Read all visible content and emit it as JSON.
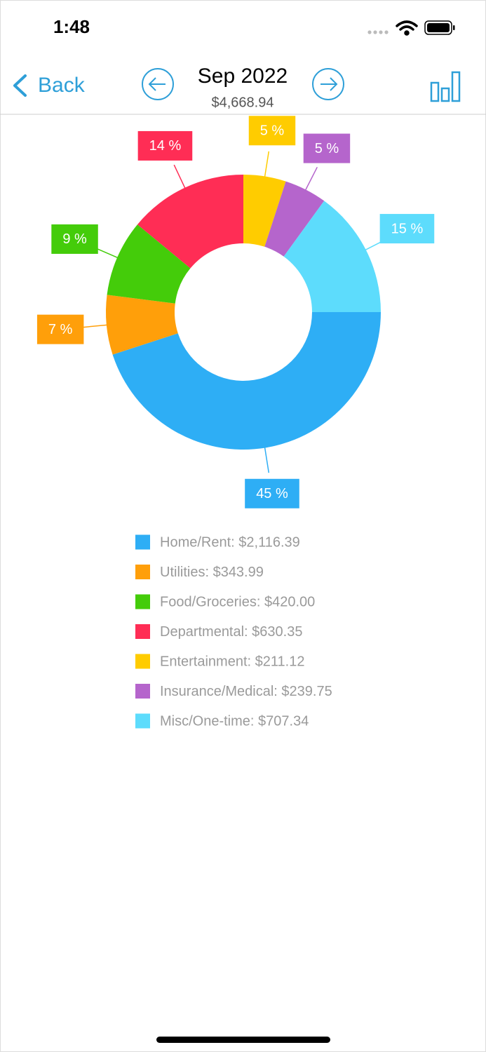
{
  "status_bar": {
    "time": "1:48"
  },
  "nav": {
    "back": "Back",
    "title": "Sep 2022",
    "subtitle": "$4,668.94"
  },
  "chart_data": {
    "type": "donut",
    "categories": [
      "Home/Rent: $2,116.39",
      "Utilities: $343.99",
      "Food/Groceries: $420.00",
      "Departmental: $630.35",
      "Entertainment: $211.12",
      "Insurance/Medical: $239.75",
      "Misc/One-time: $707.34"
    ],
    "values": [
      45,
      7,
      9,
      14,
      5,
      5,
      15
    ],
    "value_labels": [
      "45 %",
      "7 %",
      "9 %",
      "14 %",
      "5 %",
      "5 %",
      "15 %"
    ],
    "colors": [
      "#2eaef5",
      "#ff9f0a",
      "#44cc0a",
      "#ff2d55",
      "#ffcc00",
      "#b565cc",
      "#5ddcfc"
    ]
  }
}
